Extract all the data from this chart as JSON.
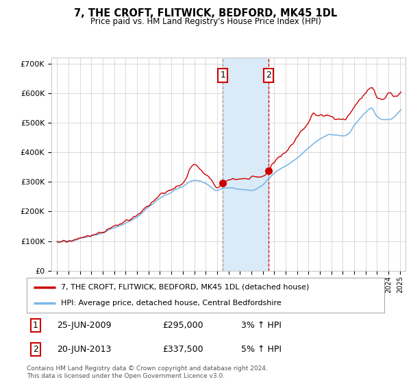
{
  "title": "7, THE CROFT, FLITWICK, BEDFORD, MK45 1DL",
  "subtitle": "Price paid vs. HM Land Registry's House Price Index (HPI)",
  "legend_line1": "7, THE CROFT, FLITWICK, BEDFORD, MK45 1DL (detached house)",
  "legend_line2": "HPI: Average price, detached house, Central Bedfordshire",
  "transaction1_label": "1",
  "transaction1_date": "25-JUN-2009",
  "transaction1_price": "£295,000",
  "transaction1_hpi": "3% ↑ HPI",
  "transaction2_label": "2",
  "transaction2_date": "20-JUN-2013",
  "transaction2_price": "£337,500",
  "transaction2_hpi": "5% ↑ HPI",
  "footnote": "Contains HM Land Registry data © Crown copyright and database right 2024.\nThis data is licensed under the Open Government Licence v3.0.",
  "hpi_color": "#7ab8e8",
  "price_color": "#cc0000",
  "vertical_line1_x": 2009.5,
  "vertical_line2_x": 2013.5,
  "shade_color": "#daeaf7",
  "ylim": [
    0,
    720000
  ],
  "xlim_start": 1994.5,
  "xlim_end": 2025.5,
  "background_color": "#ffffff",
  "grid_color": "#cccccc",
  "transaction_box_color": "#cc0000",
  "vline1_color": "#aaaaaa",
  "vline2_color": "#cc0000"
}
